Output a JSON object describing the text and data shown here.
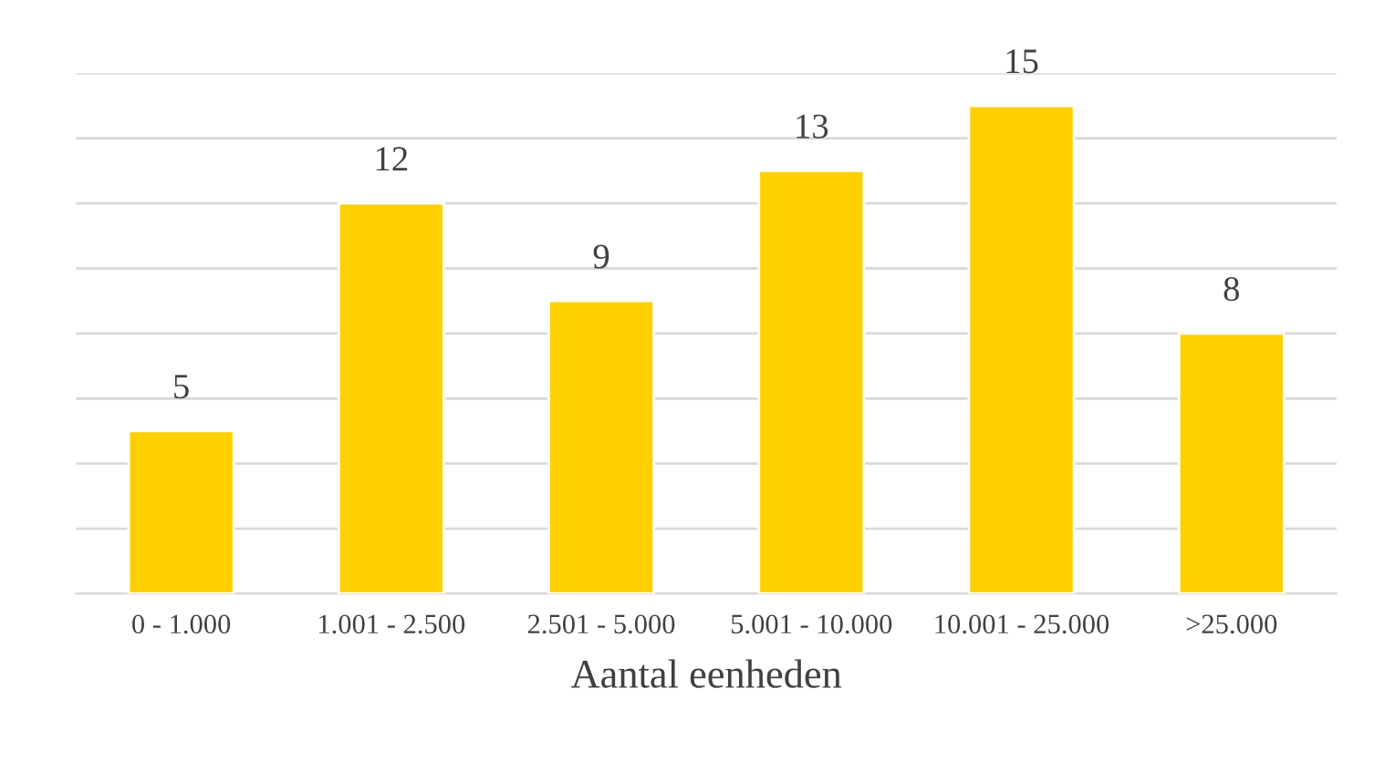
{
  "chart_data": {
    "type": "bar",
    "xlabel": "Aantal eenheden",
    "categories": [
      "0 - 1.000",
      "1.001 - 2.500",
      "2.501 - 5.000",
      "5.001 - 10.000",
      "10.001 - 25.000",
      ">25.000"
    ],
    "values": [
      5,
      12,
      9,
      13,
      15,
      8
    ],
    "color": "#ffd000",
    "data_labels": true,
    "ylim": [
      0,
      16
    ],
    "yticks": [
      {
        "value": 0,
        "label": null
      },
      {
        "value": 2,
        "label": null
      },
      {
        "value": 4,
        "label": null
      },
      {
        "value": 6,
        "label": null
      },
      {
        "value": 8,
        "label": null
      },
      {
        "value": 10,
        "label": null
      },
      {
        "value": 12,
        "label": null
      },
      {
        "value": 14,
        "label": null
      },
      {
        "value": 16,
        "label": null
      }
    ],
    "grid": "y",
    "tick_labels": "x"
  }
}
